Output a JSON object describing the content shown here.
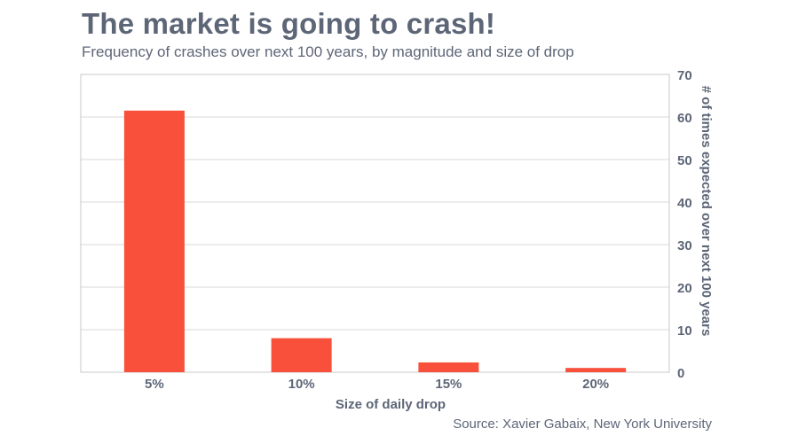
{
  "chart_data": {
    "type": "bar",
    "title": "The market is going to crash!",
    "subtitle": "Frequency of crashes over next 100 years, by magnitude and size of drop",
    "categories": [
      "5%",
      "10%",
      "15%",
      "20%"
    ],
    "values": [
      61.5,
      8,
      2.3,
      1
    ],
    "xlabel": "Size of daily drop",
    "ylabel": "# of times expected over next 100 years",
    "ylim": [
      0,
      70
    ],
    "yticks": [
      0,
      10,
      20,
      30,
      40,
      50,
      60,
      70
    ],
    "y_axis_side": "right",
    "grid": true,
    "bar_color": "#f8503b",
    "source": "Source: Xavier Gabaix, New York University"
  }
}
